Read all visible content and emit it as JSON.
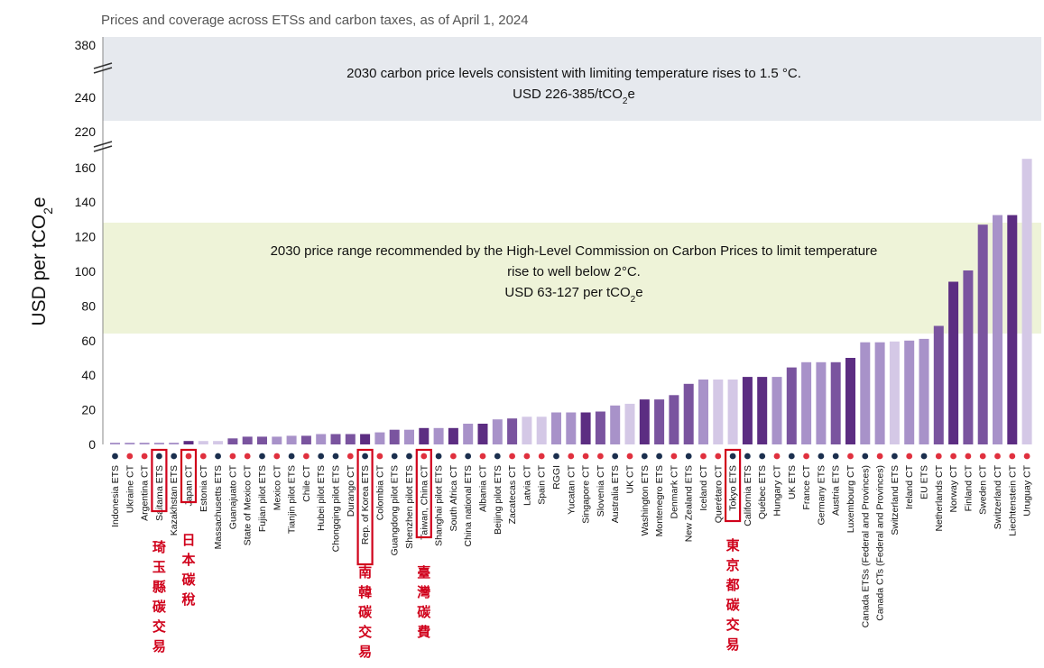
{
  "chart_data": {
    "type": "bar",
    "title": "Prices and coverage across ETSs and carbon taxes, as of April 1, 2024",
    "ylabel_prefix": "USD per tCO",
    "ylabel_sub": "2",
    "ylabel_suffix": "e",
    "y_ticks_lower": [
      0,
      20,
      40,
      60,
      80,
      100,
      120,
      140,
      160
    ],
    "y_ticks_upper": [
      220,
      240,
      380
    ],
    "ylim_lower": [
      0,
      165
    ],
    "axis_break": true,
    "grid": false,
    "bands": {
      "upper": {
        "range": [
          226,
          385
        ],
        "line1": "2030 carbon price levels consistent with limiting temperature rises to 1.5 °C.",
        "line2_prefix": "USD 226-385/tCO",
        "line2_sub": "2",
        "line2_suffix": "e",
        "color": "#e6e9ee"
      },
      "lower": {
        "range": [
          63,
          127
        ],
        "line1": "2030 price range recommended by the High-Level Commission on Carbon Prices to limit temperature",
        "line2": "rise to well below 2°C.",
        "line3_prefix": "USD 63-127 per tCO",
        "line3_sub": "2",
        "line3_suffix": "e",
        "color": "#eef3d8"
      }
    },
    "colors": {
      "ets_dot": "#1b2f4e",
      "ct_dot": "#e0303e",
      "highlight_box": "#d0021b",
      "annotation": "#d0021b"
    },
    "categories": [
      {
        "name": "Indonesia ETS",
        "value": 1,
        "kind": "ETS",
        "color": "#a892c9"
      },
      {
        "name": "Ukraine CT",
        "value": 1,
        "kind": "CT",
        "color": "#a892c9"
      },
      {
        "name": "Argentina CT",
        "value": 1,
        "kind": "CT",
        "color": "#a892c9"
      },
      {
        "name": "Saitama ETS",
        "value": 1,
        "kind": "ETS",
        "color": "#a892c9"
      },
      {
        "name": "Kazakhstan ETS",
        "value": 1,
        "kind": "ETS",
        "color": "#a892c9"
      },
      {
        "name": "Japan CT",
        "value": 2,
        "kind": "CT",
        "color": "#5c2d82"
      },
      {
        "name": "Estonia CT",
        "value": 2,
        "kind": "CT",
        "color": "#d4c8e6"
      },
      {
        "name": "Massachusetts ETS",
        "value": 2,
        "kind": "ETS",
        "color": "#d4c8e6"
      },
      {
        "name": "Guanajuato CT",
        "value": 3.5,
        "kind": "CT",
        "color": "#7a549f"
      },
      {
        "name": "State of Mexico CT",
        "value": 4.5,
        "kind": "CT",
        "color": "#7a549f"
      },
      {
        "name": "Fujian pilot ETS",
        "value": 4.5,
        "kind": "ETS",
        "color": "#7a549f"
      },
      {
        "name": "Mexico CT",
        "value": 4.5,
        "kind": "CT",
        "color": "#a892c9"
      },
      {
        "name": "Tianjin pilot ETS",
        "value": 5,
        "kind": "ETS",
        "color": "#a892c9"
      },
      {
        "name": "Chile CT",
        "value": 5,
        "kind": "CT",
        "color": "#7a549f"
      },
      {
        "name": "Hubei pilot ETS",
        "value": 6,
        "kind": "ETS",
        "color": "#a892c9"
      },
      {
        "name": "Chongqing pilot ETS",
        "value": 6,
        "kind": "ETS",
        "color": "#7a549f"
      },
      {
        "name": "Durango CT",
        "value": 6,
        "kind": "CT",
        "color": "#7a549f"
      },
      {
        "name": "Rep. of Korea ETS",
        "value": 6,
        "kind": "ETS",
        "color": "#5c2d82"
      },
      {
        "name": "Colombia CT",
        "value": 7,
        "kind": "CT",
        "color": "#a892c9"
      },
      {
        "name": "Guangdong pilot ETS",
        "value": 8.5,
        "kind": "ETS",
        "color": "#7a549f"
      },
      {
        "name": "Shenzhen pilot ETS",
        "value": 8.5,
        "kind": "ETS",
        "color": "#a892c9"
      },
      {
        "name": "Taiwan, China CT",
        "value": 9.5,
        "kind": "CT",
        "color": "#5c2d82"
      },
      {
        "name": "Shanghai pilot ETS",
        "value": 9.5,
        "kind": "ETS",
        "color": "#a892c9"
      },
      {
        "name": "South Africa CT",
        "value": 9.5,
        "kind": "CT",
        "color": "#5c2d82"
      },
      {
        "name": "China national ETS",
        "value": 12,
        "kind": "ETS",
        "color": "#a892c9"
      },
      {
        "name": "Albania CT",
        "value": 12,
        "kind": "CT",
        "color": "#5c2d82"
      },
      {
        "name": "Beijing pilot ETS",
        "value": 14.5,
        "kind": "ETS",
        "color": "#a892c9"
      },
      {
        "name": "Zacatecas CT",
        "value": 15,
        "kind": "CT",
        "color": "#7a549f"
      },
      {
        "name": "Latvia CT",
        "value": 16,
        "kind": "CT",
        "color": "#d4c8e6"
      },
      {
        "name": "Spain CT",
        "value": 16,
        "kind": "CT",
        "color": "#d4c8e6"
      },
      {
        "name": "RGGI",
        "value": 18.5,
        "kind": "ETS",
        "color": "#a892c9"
      },
      {
        "name": "Yucatan CT",
        "value": 18.5,
        "kind": "CT",
        "color": "#a892c9"
      },
      {
        "name": "Singapore CT",
        "value": 18.5,
        "kind": "CT",
        "color": "#5c2d82"
      },
      {
        "name": "Slovenia CT",
        "value": 19,
        "kind": "CT",
        "color": "#7a549f"
      },
      {
        "name": "Australia ETS",
        "value": 22.5,
        "kind": "ETS",
        "color": "#a892c9"
      },
      {
        "name": "UK CT",
        "value": 23.5,
        "kind": "CT",
        "color": "#d4c8e6"
      },
      {
        "name": "Washington ETS",
        "value": 26,
        "kind": "ETS",
        "color": "#5c2d82"
      },
      {
        "name": "Montenegro ETS",
        "value": 26,
        "kind": "ETS",
        "color": "#7a549f"
      },
      {
        "name": "Denmark CT",
        "value": 28.5,
        "kind": "CT",
        "color": "#7a549f"
      },
      {
        "name": "New Zealand ETS",
        "value": 35,
        "kind": "ETS",
        "color": "#7a549f"
      },
      {
        "name": "Iceland CT",
        "value": 37.5,
        "kind": "CT",
        "color": "#a892c9"
      },
      {
        "name": "Querétaro CT",
        "value": 37.5,
        "kind": "CT",
        "color": "#d4c8e6"
      },
      {
        "name": "Tokyo ETS",
        "value": 37.5,
        "kind": "ETS",
        "color": "#d4c8e6"
      },
      {
        "name": "California ETS",
        "value": 39,
        "kind": "ETS",
        "color": "#5c2d82"
      },
      {
        "name": "Québec ETS",
        "value": 39,
        "kind": "ETS",
        "color": "#5c2d82"
      },
      {
        "name": "Hungary CT",
        "value": 39,
        "kind": "CT",
        "color": "#a892c9"
      },
      {
        "name": "UK ETS",
        "value": 44.5,
        "kind": "ETS",
        "color": "#7a549f"
      },
      {
        "name": "France CT",
        "value": 47.5,
        "kind": "CT",
        "color": "#a892c9"
      },
      {
        "name": "Germany ETS",
        "value": 47.5,
        "kind": "ETS",
        "color": "#a892c9"
      },
      {
        "name": "Austria ETS",
        "value": 47.5,
        "kind": "ETS",
        "color": "#7a549f"
      },
      {
        "name": "Luxembourg CT",
        "value": 50,
        "kind": "CT",
        "color": "#5c2d82"
      },
      {
        "name": "Canada ETSs (Federal and Provinces)",
        "value": 59,
        "kind": "ETS",
        "color": "#a892c9"
      },
      {
        "name": "Canada CTs (Federal and Provinces)",
        "value": 59,
        "kind": "CT",
        "color": "#a892c9"
      },
      {
        "name": "Switzerland ETS",
        "value": 59.5,
        "kind": "ETS",
        "color": "#d4c8e6"
      },
      {
        "name": "Ireland CT",
        "value": 60,
        "kind": "CT",
        "color": "#a892c9"
      },
      {
        "name": "EU ETS",
        "value": 61,
        "kind": "ETS",
        "color": "#a892c9"
      },
      {
        "name": "Netherlands CT",
        "value": 68.5,
        "kind": "CT",
        "color": "#7a549f"
      },
      {
        "name": "Norway CT",
        "value": 94,
        "kind": "CT",
        "color": "#5c2d82"
      },
      {
        "name": "Finland CT",
        "value": 100.5,
        "kind": "CT",
        "color": "#7a549f"
      },
      {
        "name": "Sweden CT",
        "value": 127,
        "kind": "CT",
        "color": "#7a549f"
      },
      {
        "name": "Switzerland CT",
        "value": 132.5,
        "kind": "CT",
        "color": "#a892c9"
      },
      {
        "name": "Liechtenstein CT",
        "value": 132.5,
        "kind": "CT",
        "color": "#5c2d82"
      },
      {
        "name": "Uruguay CT",
        "value": 165,
        "kind": "CT",
        "color": "#d4c8e6"
      }
    ],
    "highlights": [
      "Saitama ETS",
      "Japan CT",
      "Rep. of Korea ETS",
      "Taiwan, China CT",
      "Tokyo ETS"
    ],
    "annotations": [
      {
        "target": "Saitama ETS",
        "text": "琦玉縣碳交易"
      },
      {
        "target": "Japan CT",
        "text": "日本碳稅"
      },
      {
        "target": "Rep. of Korea ETS",
        "text": "南韓碳交易"
      },
      {
        "target": "Taiwan, China CT",
        "text": "臺灣碳費"
      },
      {
        "target": "Tokyo ETS",
        "text": "東京都碳交易"
      }
    ]
  }
}
